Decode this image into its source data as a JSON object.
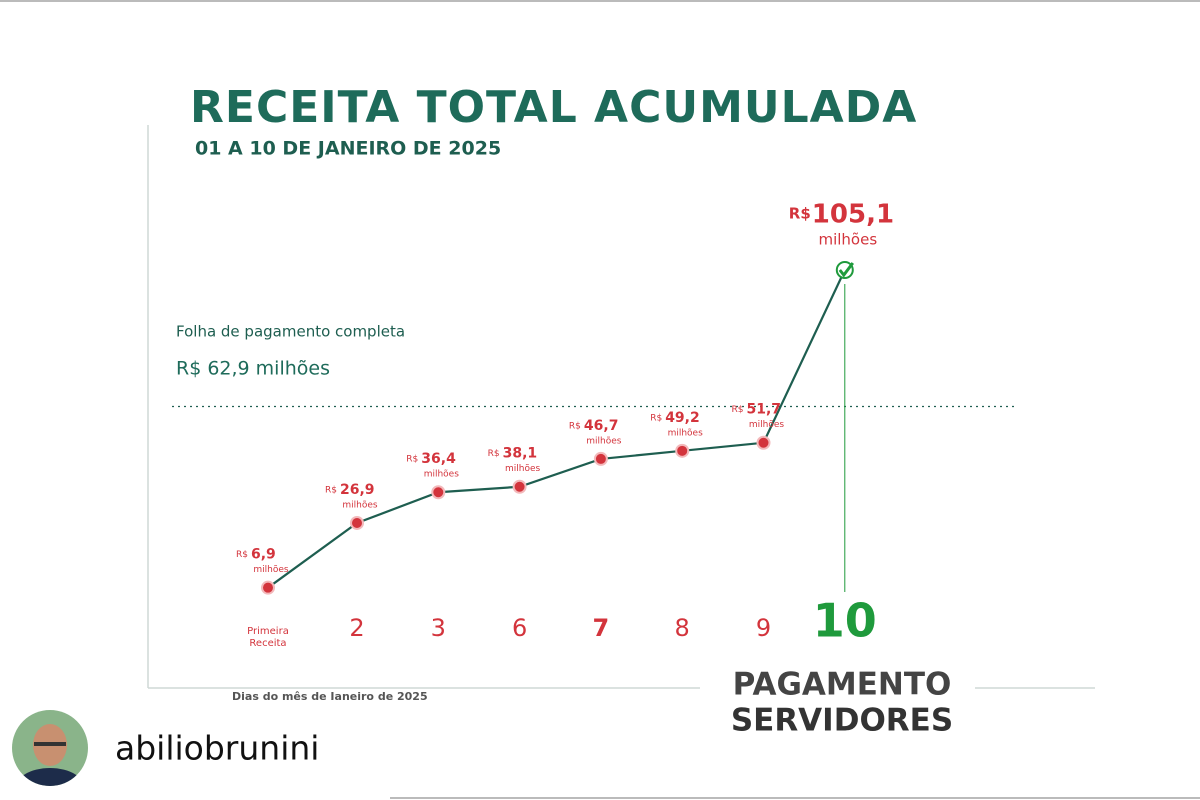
{
  "chart_data": {
    "type": "line",
    "title": "RECEITA TOTAL ACUMULADA",
    "subtitle": "01 A 10 DE JANEIRO DE 2025",
    "x_label": "Dias do mês de Janeiro de 2025",
    "categories": [
      "Primeira Receita",
      "2",
      "3",
      "6",
      "7",
      "8",
      "9",
      "10"
    ],
    "values": [
      6.9,
      26.9,
      36.4,
      38.1,
      46.7,
      49.2,
      51.7,
      105.1
    ],
    "value_labels": [
      "6,9",
      "26,9",
      "36,4",
      "38,1",
      "46,7",
      "49,2",
      "51,7",
      "105,1"
    ],
    "currency": "R$",
    "unit": "milhões",
    "color": "#1e5e50",
    "point_color": "#d3343c",
    "highlight_color": "#1f9a3c",
    "reference": {
      "label": "Folha de pagamento completa",
      "value": 62.9,
      "value_label": "R$ 62,9 milhões"
    },
    "annotation": [
      "PAGAMENTO",
      "SERVIDORES"
    ]
  },
  "post": {
    "username": "abiliobrunini"
  }
}
